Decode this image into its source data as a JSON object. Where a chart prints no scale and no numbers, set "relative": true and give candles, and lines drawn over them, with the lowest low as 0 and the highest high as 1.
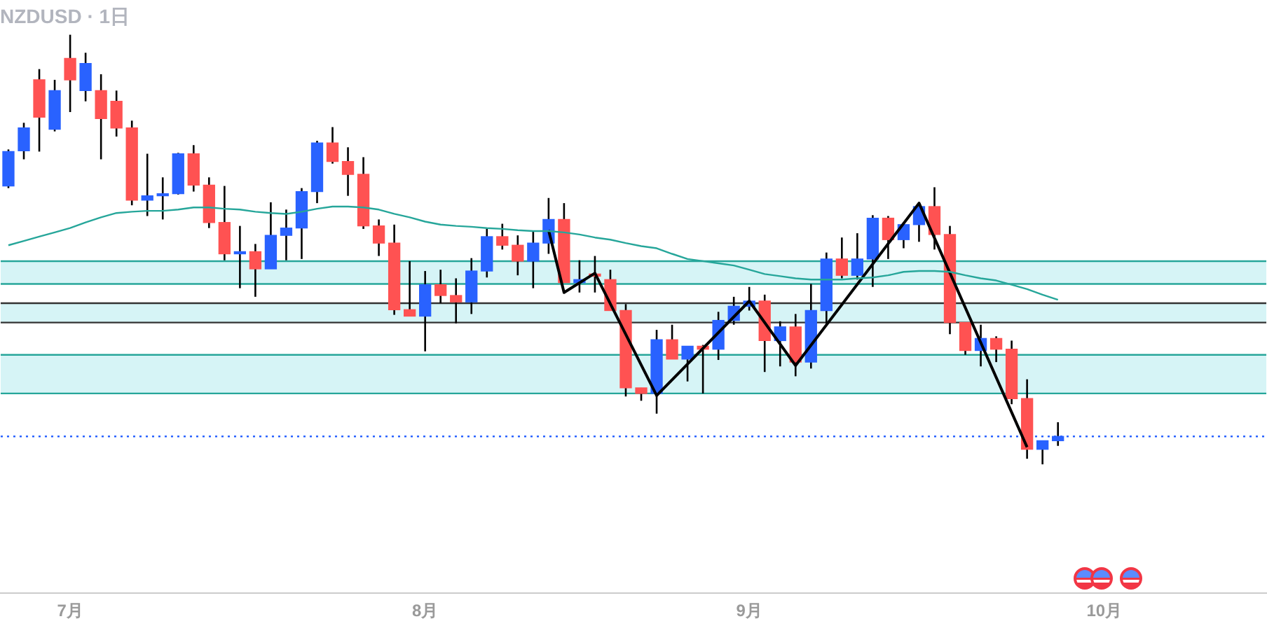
{
  "chart_data": {
    "type": "candlestick",
    "title": "NZDUSD · 1日",
    "relative": true,
    "categories": [
      null,
      null,
      null,
      null,
      "7月",
      null,
      null,
      null,
      null,
      null,
      null,
      null,
      null,
      null,
      null,
      null,
      null,
      null,
      null,
      null,
      null,
      null,
      null,
      null,
      null,
      null,
      null,
      "8月",
      null,
      null,
      null,
      null,
      null,
      null,
      null,
      null,
      null,
      null,
      null,
      null,
      null,
      null,
      null,
      null,
      null,
      null,
      null,
      null,
      "9月",
      null,
      null,
      null,
      null,
      null,
      null,
      null,
      null,
      null,
      null,
      null,
      null,
      null,
      null,
      null,
      null,
      null,
      null,
      null,
      null,
      null,
      null,
      "10月",
      null,
      null,
      null,
      null,
      null,
      null,
      null,
      null,
      null,
      null
    ],
    "ohlc": [
      [
        0.648,
        0.733,
        0.643,
        0.728
      ],
      [
        0.73,
        0.795,
        0.71,
        0.783
      ],
      [
        0.895,
        0.92,
        0.728,
        0.808
      ],
      [
        0.78,
        0.895,
        0.775,
        0.87
      ],
      [
        0.945,
        1,
        0.82,
        0.895
      ],
      [
        0.87,
        0.958,
        0.845,
        0.933
      ],
      [
        0.87,
        0.908,
        0.71,
        0.805
      ],
      [
        0.845,
        0.87,
        0.763,
        0.783
      ],
      [
        0.783,
        0.8,
        0.603,
        0.615
      ],
      [
        0.615,
        0.723,
        0.578,
        0.625
      ],
      [
        0.625,
        0.668,
        0.57,
        0.63
      ],
      [
        0.63,
        0.725,
        0.628,
        0.723
      ],
      [
        0.723,
        0.743,
        0.635,
        0.65
      ],
      [
        0.65,
        0.668,
        0.55,
        0.563
      ],
      [
        0.563,
        0.648,
        0.475,
        0.49
      ],
      [
        0.49,
        0.555,
        0.41,
        0.495
      ],
      [
        0.495,
        0.513,
        0.39,
        0.455
      ],
      [
        0.455,
        0.61,
        0.455,
        0.533
      ],
      [
        0.533,
        0.593,
        0.475,
        0.55
      ],
      [
        0.55,
        0.643,
        0.478,
        0.635
      ],
      [
        0.635,
        0.753,
        0.608,
        0.748
      ],
      [
        0.748,
        0.785,
        0.7,
        0.705
      ],
      [
        0.705,
        0.738,
        0.625,
        0.675
      ],
      [
        0.675,
        0.715,
        0.548,
        0.555
      ],
      [
        0.555,
        0.57,
        0.485,
        0.515
      ],
      [
        0.515,
        0.558,
        0.348,
        0.36
      ],
      [
        0.36,
        0.473,
        0.345,
        0.345
      ],
      [
        0.345,
        0.45,
        0.263,
        0.418
      ],
      [
        0.418,
        0.453,
        0.375,
        0.393
      ],
      [
        0.393,
        0.433,
        0.328,
        0.378
      ],
      [
        0.378,
        0.48,
        0.35,
        0.45
      ],
      [
        0.45,
        0.548,
        0.435,
        0.53
      ],
      [
        0.53,
        0.56,
        0.5,
        0.51
      ],
      [
        0.51,
        0.533,
        0.44,
        0.473
      ],
      [
        0.473,
        0.543,
        0.41,
        0.515
      ],
      [
        0.515,
        0.62,
        0.49,
        0.57
      ],
      [
        0.57,
        0.608,
        0.423,
        0.423
      ],
      [
        0.423,
        0.475,
        0.4,
        0.43
      ],
      [
        0.443,
        0.485,
        0.4,
        0.438
      ],
      [
        0.43,
        0.453,
        0.358,
        0.358
      ],
      [
        0.358,
        0.373,
        0.158,
        0.178
      ],
      [
        0.178,
        0.178,
        0.148,
        0.165
      ],
      [
        0.165,
        0.313,
        0.118,
        0.29
      ],
      [
        0.29,
        0.325,
        0.245,
        0.245
      ],
      [
        0.245,
        0.275,
        0.193,
        0.275
      ],
      [
        0.275,
        0.278,
        0.165,
        0.268
      ],
      [
        0.268,
        0.355,
        0.243,
        0.335
      ],
      [
        0.335,
        0.39,
        0.325,
        0.368
      ],
      [
        0.368,
        0.413,
        0.358,
        0.38
      ],
      [
        0.38,
        0.395,
        0.215,
        0.288
      ],
      [
        0.288,
        0.333,
        0.228,
        0.32
      ],
      [
        0.32,
        0.35,
        0.205,
        0.238
      ],
      [
        0.238,
        0.42,
        0.223,
        0.358
      ],
      [
        0.358,
        0.493,
        0.328,
        0.478
      ],
      [
        0.478,
        0.528,
        0.433,
        0.44
      ],
      [
        0.44,
        0.538,
        0.43,
        0.478
      ],
      [
        0.478,
        0.58,
        0.413,
        0.573
      ],
      [
        0.573,
        0.578,
        0.478,
        0.523
      ],
      [
        0.523,
        0.558,
        0.503,
        0.558
      ],
      [
        0.558,
        0.61,
        0.518,
        0.6
      ],
      [
        0.6,
        0.645,
        0.5,
        0.535
      ],
      [
        0.535,
        0.555,
        0.303,
        0.33
      ],
      [
        0.33,
        0.33,
        0.255,
        0.265
      ],
      [
        0.265,
        0.325,
        0.228,
        0.293
      ],
      [
        0.293,
        0.298,
        0.238,
        0.268
      ],
      [
        0.268,
        0.288,
        0.14,
        0.153
      ],
      [
        0.153,
        0.198,
        0.013,
        0.035
      ],
      [
        0.035,
        0.055,
        0,
        0.055
      ],
      [
        0.055,
        0.098,
        0.043,
        0.065
      ],
      null,
      null,
      null,
      null,
      null,
      null,
      null,
      null,
      null,
      null,
      null,
      null,
      null
    ],
    "colors": [
      "#2962ff",
      "#2962ff",
      "#ff5252",
      "#2962ff",
      "#ff5252",
      "#2962ff",
      "#ff5252",
      "#ff5252",
      "#ff5252",
      "#2962ff",
      "#2962ff",
      "#2962ff",
      "#ff5252",
      "#ff5252",
      "#ff5252",
      "#2962ff",
      "#ff5252",
      "#2962ff",
      "#2962ff",
      "#2962ff",
      "#2962ff",
      "#ff5252",
      "#ff5252",
      "#ff5252",
      "#ff5252",
      "#ff5252",
      "#ff5252",
      "#2962ff",
      "#ff5252",
      "#ff5252",
      "#2962ff",
      "#2962ff",
      "#ff5252",
      "#ff5252",
      "#2962ff",
      "#2962ff",
      "#ff5252",
      "#2962ff",
      "#ff5252",
      "#ff5252",
      "#ff5252",
      "#ff5252",
      "#2962ff",
      "#ff5252",
      "#2962ff",
      "#ff5252",
      "#2962ff",
      "#2962ff",
      "#2962ff",
      "#ff5252",
      "#2962ff",
      "#ff5252",
      "#2962ff",
      "#2962ff",
      "#ff5252",
      "#2962ff",
      "#2962ff",
      "#ff5252",
      "#2962ff",
      "#2962ff",
      "#ff5252",
      "#ff5252",
      "#ff5252",
      "#2962ff",
      "#ff5252",
      "#ff5252",
      "#ff5252",
      "#2962ff",
      "#2962ff",
      null,
      null,
      null,
      null,
      null,
      null,
      null,
      null,
      null,
      null,
      null,
      null,
      null
    ],
    "series": [
      {
        "type": "line",
        "color": "#26a69a",
        "values": [
          0.51,
          0.52,
          0.53,
          0.54,
          0.55,
          0.563,
          0.575,
          0.585,
          0.588,
          0.59,
          0.59,
          0.593,
          0.598,
          0.598,
          0.595,
          0.593,
          0.588,
          0.585,
          0.583,
          0.588,
          0.595,
          0.6,
          0.6,
          0.598,
          0.593,
          0.583,
          0.575,
          0.565,
          0.558,
          0.555,
          0.553,
          0.55,
          0.548,
          0.545,
          0.543,
          0.543,
          0.54,
          0.535,
          0.528,
          0.523,
          0.515,
          0.508,
          0.503,
          0.49,
          0.478,
          0.473,
          0.468,
          0.463,
          0.453,
          0.443,
          0.438,
          0.433,
          0.43,
          0.43,
          0.43,
          0.433,
          0.435,
          0.44,
          0.448,
          0.45,
          0.45,
          0.448,
          0.44,
          0.433,
          0.428,
          0.418,
          0.408,
          0.395,
          0.383,
          null,
          null,
          null,
          null,
          null,
          null,
          null,
          null,
          null,
          null,
          null,
          null,
          null
        ]
      },
      {
        "type": "line",
        "color": "#000000",
        "values": [
          null,
          null,
          null,
          null,
          null,
          null,
          null,
          null,
          null,
          null,
          null,
          null,
          null,
          null,
          null,
          null,
          null,
          null,
          null,
          null,
          null,
          null,
          null,
          null,
          null,
          null,
          null,
          null,
          null,
          null,
          null,
          null,
          null,
          null,
          null,
          0.545,
          0.4,
          null,
          0.445,
          null,
          null,
          null,
          0.16,
          null,
          null,
          null,
          null,
          null,
          0.38,
          null,
          null,
          0.23,
          null,
          null,
          null,
          null,
          null,
          null,
          null,
          0.608,
          null,
          null,
          null,
          null,
          null,
          null,
          0.04,
          null,
          null,
          null,
          null,
          null,
          null,
          null,
          null,
          null,
          null,
          null,
          null,
          null,
          null,
          null
        ]
      }
    ],
    "bands": [
      {
        "axis": "y",
        "from": 0.42,
        "to": 0.473,
        "color": "#d6f4f6"
      },
      {
        "axis": "y",
        "from": 0.33,
        "to": 0.375,
        "color": "#d6f4f6"
      },
      {
        "axis": "y",
        "from": 0.165,
        "to": 0.255,
        "color": "#d6f4f6"
      }
    ],
    "ref_lines": [
      {
        "axis": "y",
        "value": 0.473,
        "color": "#26a69a",
        "line_style": "solid"
      },
      {
        "axis": "y",
        "value": 0.42,
        "color": "#26a69a",
        "line_style": "solid"
      },
      {
        "axis": "y",
        "value": 0.375,
        "color": "#333333",
        "line_style": "solid"
      },
      {
        "axis": "y",
        "value": 0.33,
        "color": "#333333",
        "line_style": "solid"
      },
      {
        "axis": "y",
        "value": 0.255,
        "color": "#26a69a",
        "line_style": "solid"
      },
      {
        "axis": "y",
        "value": 0.165,
        "color": "#26a69a",
        "line_style": "solid"
      },
      {
        "axis": "y",
        "value": 0.065,
        "color": "#2962ff",
        "line_style": "dotted"
      }
    ]
  }
}
